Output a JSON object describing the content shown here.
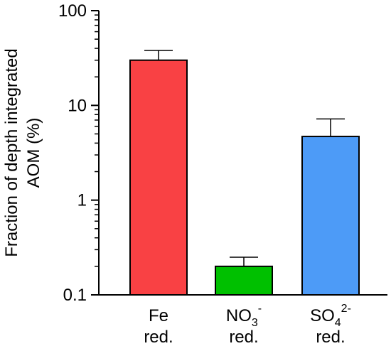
{
  "chart_data": {
    "type": "bar",
    "yscale": "log",
    "ylim": [
      0.1,
      100
    ],
    "ylabel_lines": [
      "Fraction of depth integrated",
      "AOM  (%)"
    ],
    "yticks": [
      {
        "value": 0.1,
        "label": "0.1"
      },
      {
        "value": 1,
        "label": "1"
      },
      {
        "value": 10,
        "label": "10"
      },
      {
        "value": 100,
        "label": "100"
      }
    ],
    "categories": [
      {
        "line1": "Fe",
        "line1_sub": "",
        "line1_sup": "",
        "line2": "red."
      },
      {
        "line1": "NO",
        "line1_sub": "3",
        "line1_sup": "-",
        "line2": "red."
      },
      {
        "line1": "SO",
        "line1_sub": "4",
        "line1_sup": "2-",
        "line2": "red."
      }
    ],
    "values": [
      30,
      0.2,
      4.7
    ],
    "error_upper": [
      38,
      0.25,
      7.2
    ],
    "colors": [
      "#f94144",
      "#00c000",
      "#4d9bf7"
    ],
    "grid": false,
    "legend": "none"
  }
}
